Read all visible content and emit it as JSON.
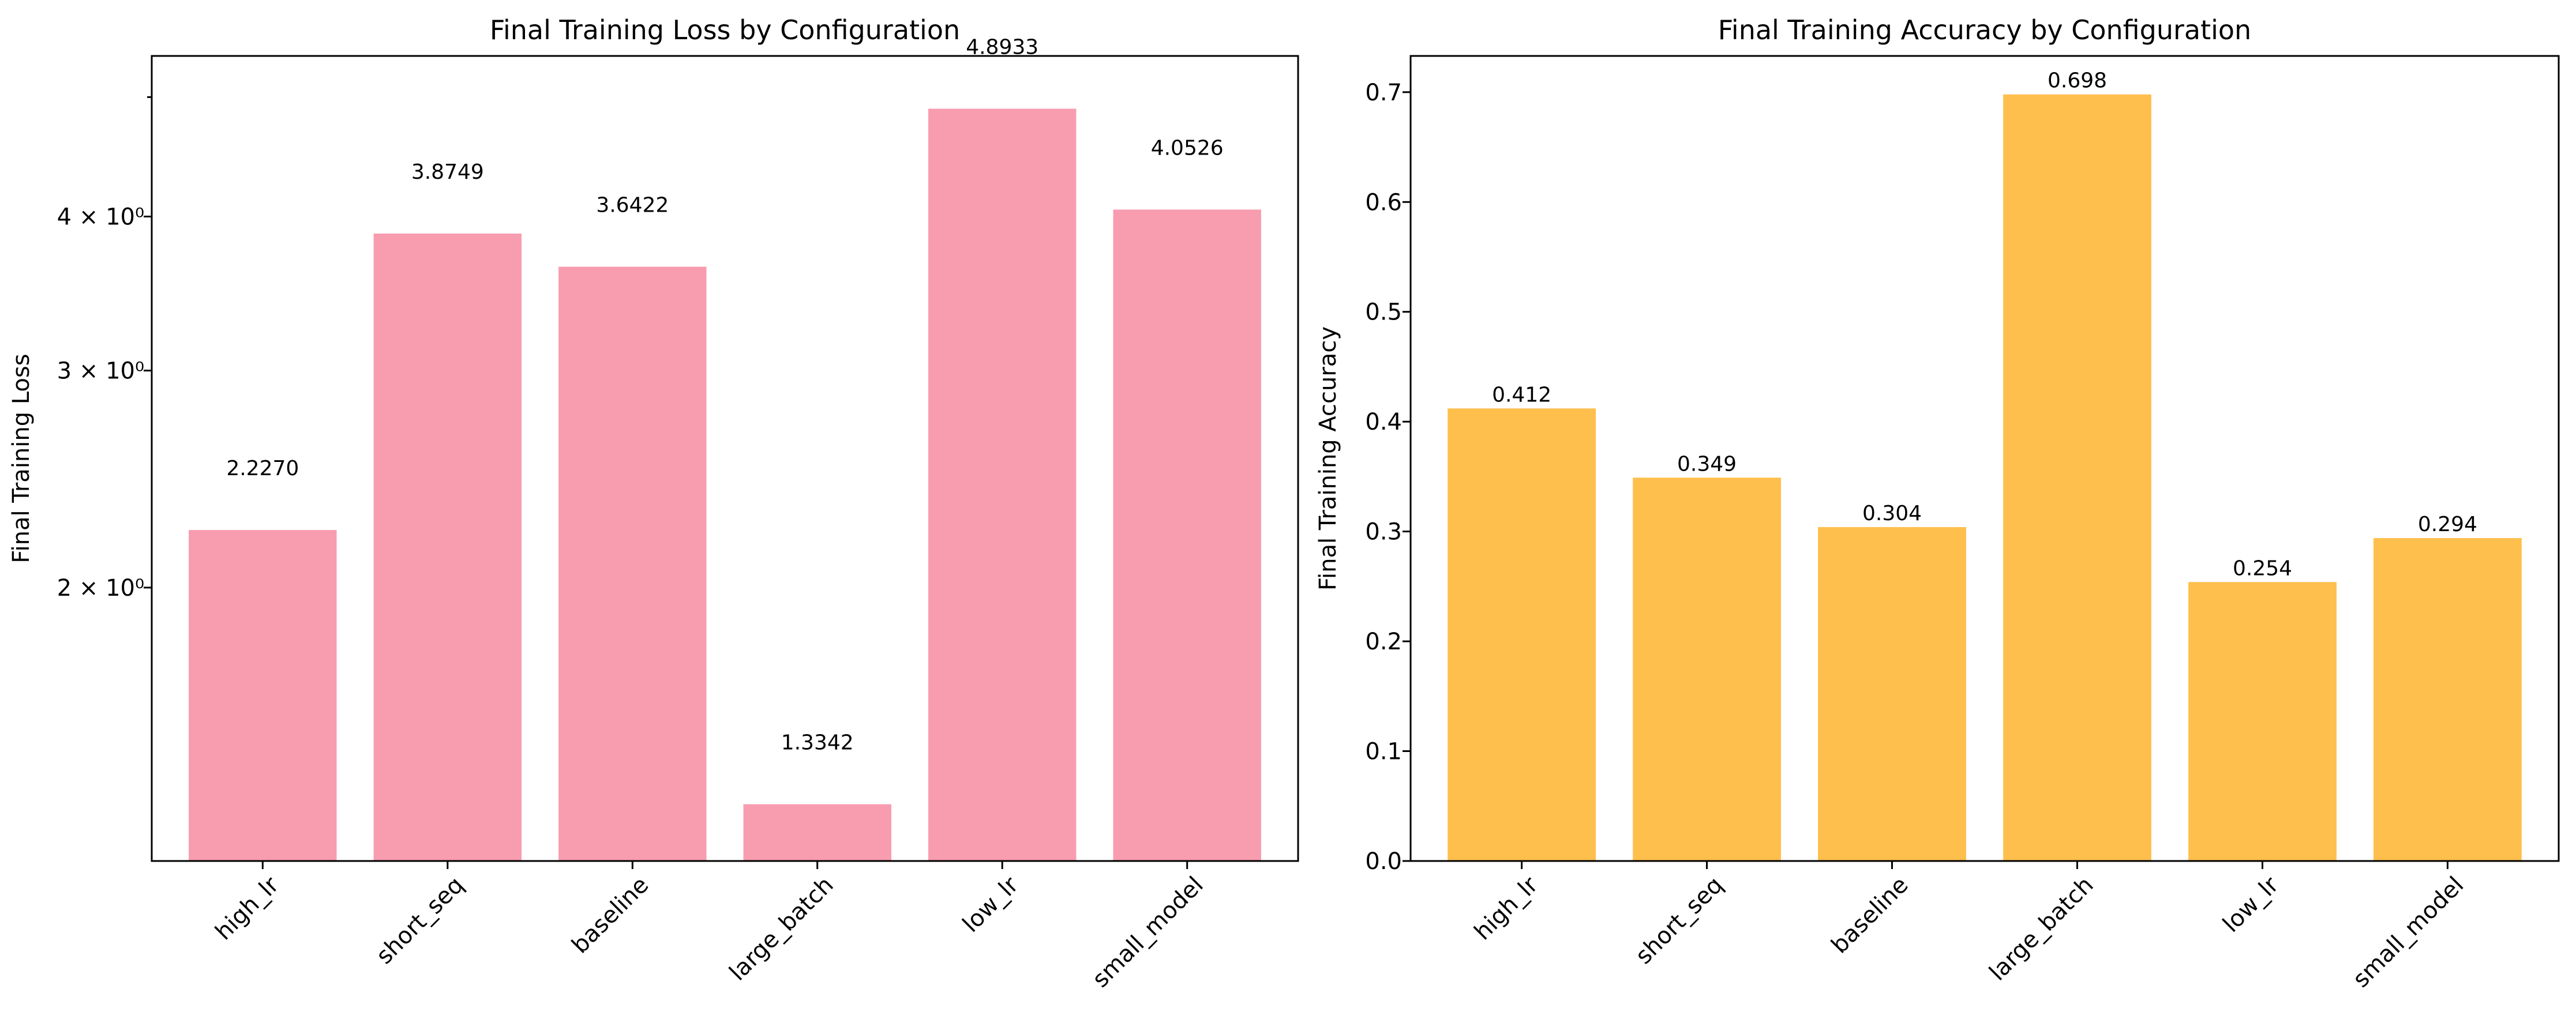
{
  "chart_data": [
    {
      "type": "bar",
      "title": "Final Training Loss by Configuration",
      "xlabel": "",
      "ylabel": "Final Training Loss",
      "yscale": "log",
      "ylim": [
        1.2,
        5.4
      ],
      "grid": false,
      "color": "#f89caf",
      "categories": [
        "high_lr",
        "short_seq",
        "baseline",
        "large_batch",
        "low_lr",
        "small_model"
      ],
      "values": [
        2.227,
        3.8749,
        3.6422,
        1.3342,
        4.8933,
        4.0526
      ],
      "data_labels": [
        "2.2270",
        "3.8749",
        "3.6422",
        "1.3342",
        "4.8933",
        "4.0526"
      ],
      "yticks": [
        {
          "value": 2,
          "label": "2 × 10⁰"
        },
        {
          "value": 3,
          "label": "3 × 10⁰"
        },
        {
          "value": 4,
          "label": "4 × 10⁰"
        }
      ],
      "minor_yticks": [
        5
      ]
    },
    {
      "type": "bar",
      "title": "Final Training Accuracy by Configuration",
      "xlabel": "",
      "ylabel": "Final Training Accuracy",
      "yscale": "linear",
      "ylim": [
        0,
        0.733
      ],
      "grid": false,
      "color": "#ffbf4d",
      "categories": [
        "high_lr",
        "short_seq",
        "baseline",
        "large_batch",
        "low_lr",
        "small_model"
      ],
      "values": [
        0.412,
        0.349,
        0.304,
        0.698,
        0.254,
        0.294
      ],
      "data_labels": [
        "0.412",
        "0.349",
        "0.304",
        "0.698",
        "0.254",
        "0.294"
      ],
      "yticks": [
        {
          "value": 0.0,
          "label": "0.0"
        },
        {
          "value": 0.1,
          "label": "0.1"
        },
        {
          "value": 0.2,
          "label": "0.2"
        },
        {
          "value": 0.3,
          "label": "0.3"
        },
        {
          "value": 0.4,
          "label": "0.4"
        },
        {
          "value": 0.5,
          "label": "0.5"
        },
        {
          "value": 0.6,
          "label": "0.6"
        },
        {
          "value": 0.7,
          "label": "0.7"
        }
      ]
    }
  ]
}
